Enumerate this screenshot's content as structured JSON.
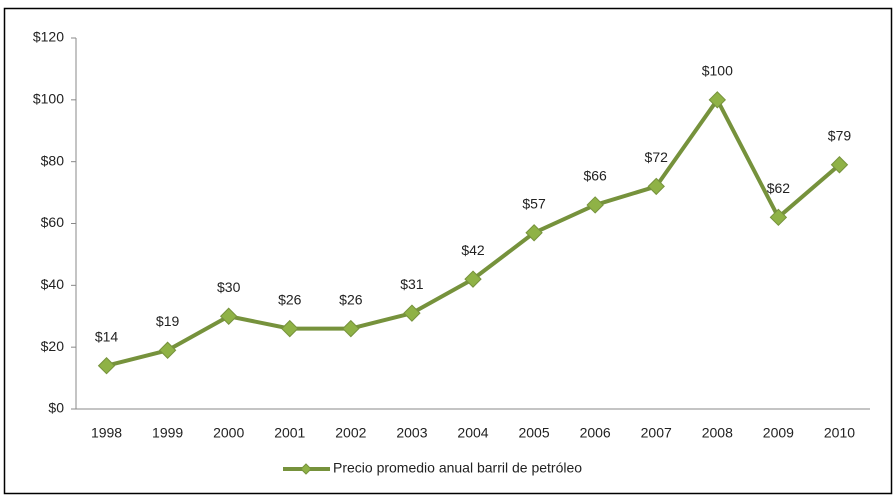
{
  "chart_data": {
    "type": "line",
    "categories": [
      "1998",
      "1999",
      "2000",
      "2001",
      "2002",
      "2003",
      "2004",
      "2005",
      "2006",
      "2007",
      "2008",
      "2009",
      "2010"
    ],
    "series": [
      {
        "name": "Precio promedio anual barril de petróleo",
        "color": "#76923c",
        "marker_color": "#8fb246",
        "values": [
          14,
          19,
          30,
          26,
          26,
          31,
          42,
          57,
          66,
          72,
          100,
          62,
          79
        ],
        "value_labels": [
          "$14",
          "$19",
          "$30",
          "$26",
          "$26",
          "$31",
          "$42",
          "$57",
          "$66",
          "$72",
          "$100",
          "$62",
          "$79"
        ]
      }
    ],
    "ylim": [
      0,
      120
    ],
    "yticks": [
      {
        "value": 0,
        "label": "$0"
      },
      {
        "value": 20,
        "label": "$20"
      },
      {
        "value": 40,
        "label": "$40"
      },
      {
        "value": 60,
        "label": "$60"
      },
      {
        "value": 80,
        "label": "$80"
      },
      {
        "value": 100,
        "label": "$100"
      },
      {
        "value": 120,
        "label": "$120"
      }
    ],
    "grid": false,
    "legend": "bottom"
  }
}
